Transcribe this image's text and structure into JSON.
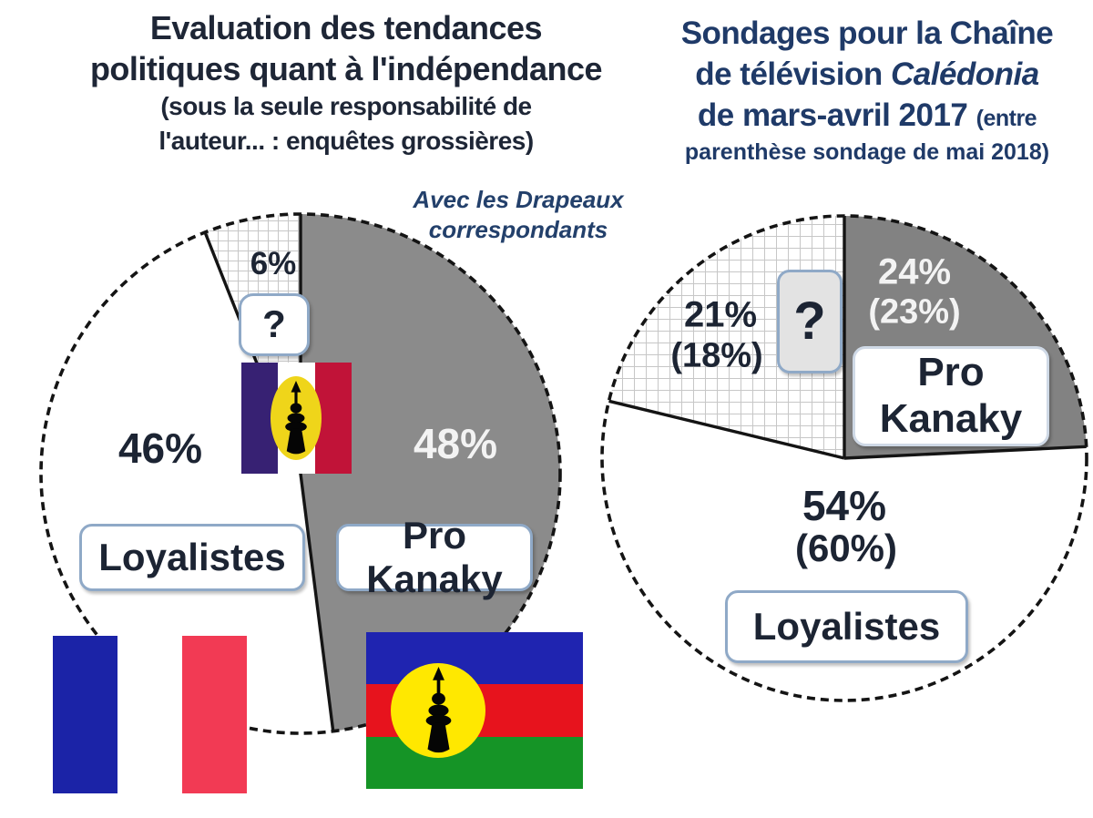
{
  "left_title": {
    "l1": "Evaluation des tendances",
    "l2": "politiques quant à l'indépendance",
    "l3": "(sous la seule responsabilité de",
    "l4": "l'auteur... : enquêtes grossières)"
  },
  "right_title": {
    "l1": "Sondages pour la Chaîne",
    "l2a": "de télévision ",
    "l2b_italic": "Calédonia",
    "l3a": "de mars-avril 2017 ",
    "l3b_small": "(entre",
    "l4_small": "parenthèse sondage de mai 2018)"
  },
  "annotation": {
    "l1": "Avec les Drapeaux",
    "l2": "correspondants"
  },
  "chart_data": [
    {
      "id": "left-pie",
      "type": "pie",
      "title": "Evaluation des tendances politiques quant à l'indépendance (sous la seule responsabilité de l'auteur... : enquêtes grossières)",
      "units": "%",
      "start_angle_deg": 0,
      "direction": "clockwise-from-12h",
      "slices": [
        {
          "label": "Pro Kanaky",
          "value": 48,
          "pct_text": "48%",
          "box_label": "Pro Kanaky",
          "fill": "#8b8b8b",
          "pattern": false,
          "pct_text_color": "#ffffff"
        },
        {
          "label": "Loyalistes",
          "value": 46,
          "pct_text": "46%",
          "box_label": "Loyalistes",
          "fill": "#ffffff",
          "pattern": false,
          "pct_text_color": "#1c2433"
        },
        {
          "label": "?",
          "value": 6,
          "pct_text": "6%",
          "box_label": "?",
          "fill": "#ffffff",
          "pattern": true,
          "pct_text_color": "#1c2433"
        }
      ]
    },
    {
      "id": "right-pie",
      "type": "pie",
      "title": "Sondages pour la Chaîne de télévision Calédonia de mars-avril 2017 (entre parenthèse sondage de mai 2018)",
      "units": "%",
      "start_angle_deg": 0,
      "direction": "clockwise-from-12h",
      "note": "entre parenthèse sondage de mai 2018",
      "slices": [
        {
          "label": "Pro Kanaky",
          "value": 24,
          "value_mai_2018": 23,
          "pct_text": "24%",
          "pct_2018_text": "(23%)",
          "box_label": "Pro Kanaky",
          "box_label_line1": "Pro",
          "box_label_line2": "Kanaky",
          "fill": "#828282",
          "pattern": false,
          "pct_text_color": "#f3f3f3"
        },
        {
          "label": "Loyalistes",
          "value": 54,
          "value_mai_2018": 60,
          "pct_text": "54%",
          "pct_2018_text": "(60%)",
          "box_label": "Loyalistes",
          "fill": "#ffffff",
          "pattern": false,
          "pct_text_color": "#1c2433"
        },
        {
          "label": "?",
          "value": 21,
          "value_mai_2018": 18,
          "pct_text": "21%",
          "pct_2018_text": "(18%)",
          "box_label": "?",
          "fill": "#ffffff",
          "pattern": true,
          "pct_text_color": "#1c2433"
        }
      ]
    }
  ],
  "colors": {
    "pie_outline": "#141414",
    "hatch_line": "#c7c7c7",
    "box_border": "#8fa9c7",
    "title_left": "#1e2636",
    "title_right": "#1f3a68"
  },
  "flags": {
    "french": {
      "icon": "french-flag-icon",
      "stripes": [
        "#1b23a7",
        "#ffffff",
        "#f23a54"
      ]
    },
    "kanaky": {
      "icon": "kanaky-flag-icon",
      "stripes": [
        "#1f24b0",
        "#e7131d",
        "#159426"
      ],
      "disc": "#ffe800",
      "emblem": "#050505"
    },
    "hybrid": {
      "icon": "france-kanaky-hybrid-flag-icon",
      "stripes": [
        "#372173",
        "#ffffff",
        "#c11338"
      ],
      "oval": "#efd51a",
      "emblem": "#050505"
    }
  }
}
